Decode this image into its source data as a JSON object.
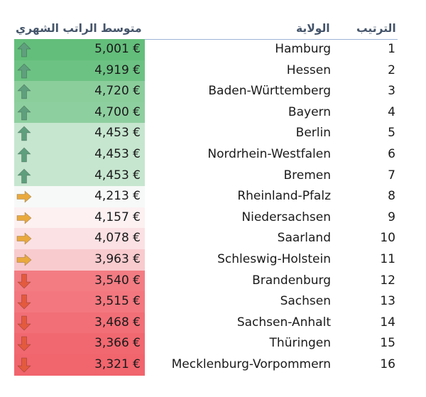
{
  "headers": {
    "salary": "متوسط الراتب الشهري",
    "state": "الولاية",
    "rank": "الترتيب"
  },
  "rows": [
    {
      "salary": "5,001 €",
      "state": "Hamburg",
      "rank": "1",
      "trend": "up",
      "color": "#63be7b"
    },
    {
      "salary": "4,919 €",
      "state": "Hessen",
      "rank": "2",
      "trend": "up",
      "color": "#6cc283"
    },
    {
      "salary": "4,720 €",
      "state": "Baden-Württemberg",
      "rank": "3",
      "trend": "up",
      "color": "#8bce9c"
    },
    {
      "salary": "4,700 €",
      "state": "Bayern",
      "rank": "4",
      "trend": "up",
      "color": "#8ecf9f"
    },
    {
      "salary": "4,453 €",
      "state": "Berlin",
      "rank": "5",
      "trend": "up",
      "color": "#c6e6cf"
    },
    {
      "salary": "4,453 €",
      "state": "Nordrhein-Westfalen",
      "rank": "6",
      "trend": "up",
      "color": "#c6e6cf"
    },
    {
      "salary": "4,453 €",
      "state": "Bremen",
      "rank": "7",
      "trend": "up",
      "color": "#c6e6cf"
    },
    {
      "salary": "4,213 €",
      "state": "Rheinland-Pfalz",
      "rank": "8",
      "trend": "right",
      "color": "#f7f9f8"
    },
    {
      "salary": "4,157 €",
      "state": "Niedersachsen",
      "rank": "9",
      "trend": "right",
      "color": "#fdf1f2"
    },
    {
      "salary": "4,078 €",
      "state": "Saarland",
      "rank": "10",
      "trend": "right",
      "color": "#fbe1e3"
    },
    {
      "salary": "3,963 €",
      "state": "Schleswig-Holstein",
      "rank": "11",
      "trend": "right",
      "color": "#f8cbce"
    },
    {
      "salary": "3,540 €",
      "state": "Brandenburg",
      "rank": "12",
      "trend": "down",
      "color": "#f37c83"
    },
    {
      "salary": "3,515 €",
      "state": "Sachsen",
      "rank": "13",
      "trend": "down",
      "color": "#f3777e"
    },
    {
      "salary": "3,468 €",
      "state": "Sachsen-Anhalt",
      "rank": "14",
      "trend": "down",
      "color": "#f26f77"
    },
    {
      "salary": "3,366 €",
      "state": "Thüringen",
      "rank": "15",
      "trend": "down",
      "color": "#f16870"
    },
    {
      "salary": "3,321 €",
      "state": "Mecklenburg-Vorpommern",
      "rank": "16",
      "trend": "down",
      "color": "#f1656d"
    }
  ],
  "icon_colors": {
    "up": "#5f9f7e",
    "right": "#e9a93d",
    "down": "#e35a3e"
  }
}
